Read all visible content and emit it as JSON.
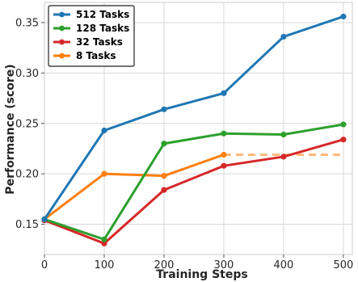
{
  "chart_data": {
    "type": "line",
    "xlabel": "Training Steps",
    "ylabel": "Performance (score)",
    "xlim": [
      0,
      515
    ],
    "ylim": [
      0.12,
      0.37
    ],
    "xticks": [
      0,
      100,
      200,
      300,
      400,
      500
    ],
    "xtick_labels": [
      "0",
      "100",
      "200",
      "300",
      "400",
      "500"
    ],
    "yticks": [
      0.15,
      0.2,
      0.25,
      0.3,
      0.35
    ],
    "ytick_labels": [
      "0.15",
      "0.20",
      "0.25",
      "0.30",
      "0.35"
    ],
    "grid": true,
    "legend_position": "top-left",
    "series": [
      {
        "name": "512 Tasks",
        "color": "#1f77b4",
        "x": [
          0,
          100,
          200,
          300,
          400,
          500
        ],
        "y": [
          0.155,
          0.243,
          0.264,
          0.28,
          0.336,
          0.356
        ]
      },
      {
        "name": "128 Tasks",
        "color": "#2ca02c",
        "x": [
          0,
          100,
          200,
          300,
          400,
          500
        ],
        "y": [
          0.155,
          0.135,
          0.23,
          0.24,
          0.239,
          0.249
        ]
      },
      {
        "name": "32 Tasks",
        "color": "#d62728",
        "x": [
          0,
          100,
          200,
          300,
          400,
          500
        ],
        "y": [
          0.154,
          0.131,
          0.184,
          0.208,
          0.217,
          0.234
        ]
      },
      {
        "name": "8 Tasks",
        "color": "#ff7f0e",
        "x": [
          0,
          100,
          200,
          300
        ],
        "y": [
          0.155,
          0.2,
          0.198,
          0.219
        ],
        "dashed_extension": {
          "x": [
            300,
            500
          ],
          "y": [
            0.219,
            0.219
          ]
        }
      }
    ]
  }
}
